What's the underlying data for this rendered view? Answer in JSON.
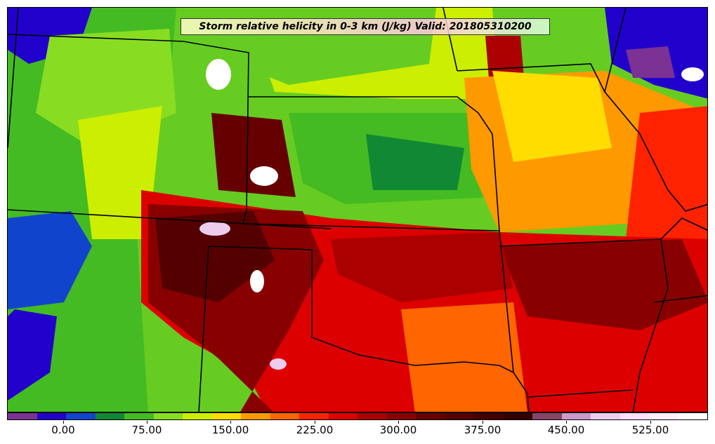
{
  "map": {
    "title": "Storm relative helicity in 0-3 km (J/kg) Valid: 201805310200",
    "legend": {
      "colors": [
        "#7b3294",
        "#2200cc",
        "#1144cc",
        "#118833",
        "#44bb22",
        "#88dd22",
        "#ccee00",
        "#ffdd00",
        "#ff9900",
        "#ff6600",
        "#ff2200",
        "#dd0000",
        "#aa0000",
        "#880000",
        "#660000",
        "#550000",
        "#440000",
        "#330000",
        "#884466",
        "#cc99cc",
        "#eeccee",
        "#ffe0ff",
        "#fff0ff",
        "#ffffff"
      ],
      "tick_labels": [
        "0.00",
        "75.00",
        "150.00",
        "225.00",
        "300.00",
        "375.00",
        "450.00",
        "525.00"
      ]
    },
    "key_colors": {
      "frame_fill": "#66cc22",
      "low": "#2200cc",
      "mid": "#ffdd00",
      "high": "#880000",
      "extreme": "#ffffff"
    }
  }
}
